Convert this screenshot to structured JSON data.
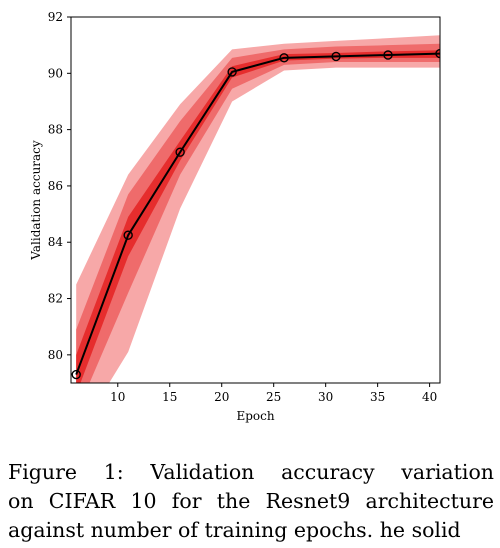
{
  "chart_data": {
    "type": "line",
    "title": "",
    "xlabel": "Epoch",
    "ylabel": "Validation accuracy",
    "xlim": [
      5.5,
      41
    ],
    "ylim": [
      79,
      92
    ],
    "xticks": [
      10,
      15,
      20,
      25,
      30,
      35,
      40
    ],
    "yticks": [
      80,
      82,
      84,
      86,
      88,
      90,
      92
    ],
    "grid": false,
    "legend": "none",
    "series": [
      {
        "x": [
          6,
          11,
          16,
          21,
          26,
          31,
          36,
          41
        ],
        "y": [
          79.3,
          84.25,
          87.2,
          90.05,
          90.55,
          90.6,
          90.65,
          90.7
        ],
        "marker": "circle",
        "color": "#000000",
        "bands": [
          {
            "lower": [
              77.1,
              80.1,
              85.2,
              89.0,
              90.1,
              90.2,
              90.2,
              90.2
            ],
            "upper": [
              82.5,
              86.4,
              88.9,
              90.85,
              91.05,
              91.15,
              91.25,
              91.35
            ],
            "color": "#f7a8a8"
          },
          {
            "lower": [
              77.9,
              82.2,
              86.4,
              89.45,
              90.3,
              90.4,
              90.4,
              90.4
            ],
            "upper": [
              80.9,
              85.7,
              88.3,
              90.55,
              90.85,
              90.95,
              91.0,
              91.05
            ],
            "color": "#ef6b6b"
          },
          {
            "lower": [
              78.6,
              83.5,
              86.9,
              89.85,
              90.45,
              90.52,
              90.55,
              90.55
            ],
            "upper": [
              80.0,
              84.9,
              87.6,
              90.25,
              90.68,
              90.72,
              90.78,
              90.82
            ],
            "color": "#e62d2d"
          }
        ]
      }
    ]
  },
  "caption": {
    "lines": [
      "Figure 1:  Validation accuracy variation",
      "on CIFAR 10 for the Resnet9 architecture",
      "against number of training epochs. he solid"
    ]
  }
}
